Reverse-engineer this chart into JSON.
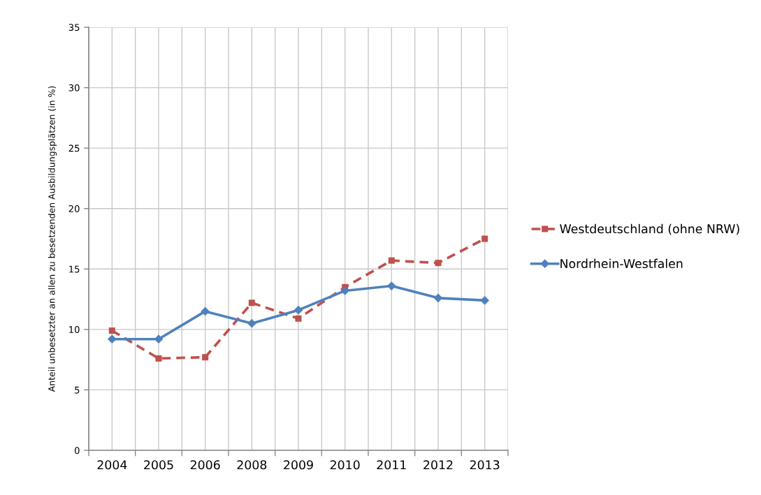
{
  "chart_data": {
    "type": "line",
    "ylabel": "Anteil unbesetzter an allen zu besetzenden Ausbildungsplätzen (in %)",
    "categories": [
      "2004",
      "2005",
      "2006",
      "2008",
      "2009",
      "2010",
      "2011",
      "2012",
      "2013"
    ],
    "series": [
      {
        "name": "Westdeutschland (ohne NRW)",
        "color": "#c0504d",
        "values": [
          9.9,
          7.6,
          7.7,
          12.2,
          10.9,
          13.5,
          15.7,
          15.5,
          17.5
        ],
        "marker": "square",
        "line_style": "dashed"
      },
      {
        "name": "Nordrhein-Westfalen",
        "color": "#4f81bd",
        "values": [
          9.2,
          9.2,
          11.5,
          10.5,
          11.6,
          13.2,
          13.6,
          12.6,
          12.4
        ],
        "marker": "diamond",
        "line_style": "solid"
      }
    ],
    "ylim": [
      0,
      35
    ],
    "yticks": [
      0,
      5,
      10,
      15,
      20,
      25,
      30,
      35
    ],
    "grid": true,
    "legend": "right"
  }
}
